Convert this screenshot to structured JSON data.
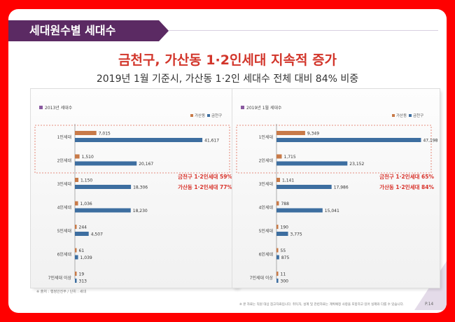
{
  "banner": {
    "title": "세대원수별 세대수"
  },
  "header": {
    "title": "금천구, 가산동 1·2인세대 지속적 증가",
    "subtitle": "2019년 1월 기준시, 가산동 1·2인 세대수 전체 대비 84% 비중"
  },
  "colors": {
    "gasan": "#c87a48",
    "geumcheon": "#3d6ea0",
    "callout": "#d8332b",
    "banner": "#5b2a63"
  },
  "chart_data": [
    {
      "type": "bar",
      "title": "2013년 세대수",
      "categories": [
        "1인세대",
        "2인세대",
        "3인세대",
        "4인세대",
        "5인세대",
        "6인세대",
        "7인세대 이상"
      ],
      "series": [
        {
          "name": "가산동",
          "values": [
            7015,
            1510,
            1150,
            1036,
            244,
            61,
            19
          ],
          "labels": [
            "7,015",
            "1,510",
            "1,150",
            "1,036",
            "244",
            "61",
            "19"
          ]
        },
        {
          "name": "금천구",
          "values": [
            41617,
            20167,
            18306,
            18230,
            4507,
            1039,
            313
          ],
          "labels": [
            "41,617",
            "20,167",
            "18,306",
            "18,230",
            "4,507",
            "1,039",
            "313"
          ]
        }
      ],
      "xlim": [
        0,
        48000
      ],
      "legend": "top-right",
      "annotations": [
        "금천구 1·2인세대 59%",
        "가산동 1·2인세대 77%"
      ]
    },
    {
      "type": "bar",
      "title": "2019년 1월 세대수",
      "categories": [
        "1인세대",
        "2인세대",
        "3인세대",
        "4인세대",
        "5인세대",
        "6인세대",
        "7인세대 이상"
      ],
      "series": [
        {
          "name": "가산동",
          "values": [
            9349,
            1715,
            1141,
            788,
            190,
            55,
            11
          ],
          "labels": [
            "9,349",
            "1,715",
            "1,141",
            "788",
            "190",
            "55",
            "11"
          ]
        },
        {
          "name": "금천구",
          "values": [
            47198,
            23152,
            17986,
            15041,
            3775,
            875,
            300
          ],
          "labels": [
            "47,198",
            "23,152",
            "17,986",
            "15,041",
            "3,775",
            "875",
            "300"
          ]
        }
      ],
      "xlim": [
        0,
        48000
      ],
      "legend": "top-right",
      "annotations": [
        "금천구 1·2인세대 65%",
        "가산동 1·2인세대 84%"
      ]
    }
  ],
  "footer": {
    "source": "※ 출처 : 행정안전부 / 단위 : 세대",
    "note": "※ 본 자료는 직원 대상 참고자료입니다. 취득자, 설계 및 관련자료는 계획예정 사항을 포함하고 있어 실제와 다를 수 있습니다.",
    "page": "P.14"
  }
}
